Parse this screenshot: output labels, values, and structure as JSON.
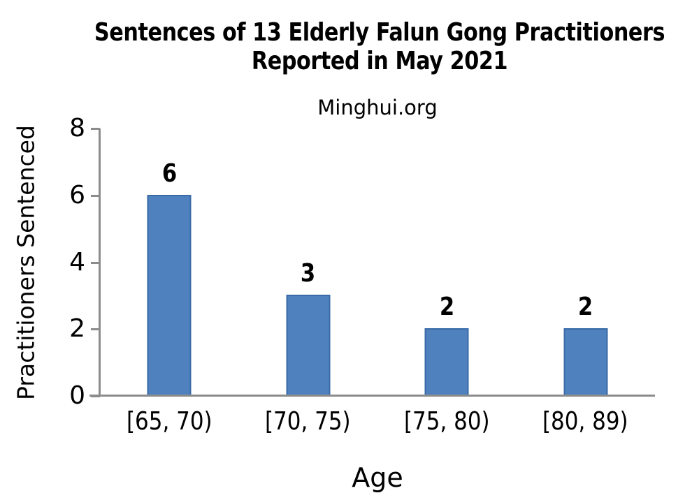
{
  "chart_data": {
    "type": "bar",
    "title": "Sentences of 13 Elderly Falun Gong Practitioners Reported in May 2021",
    "subtitle": "Minghui.org",
    "xlabel": "Age",
    "ylabel": "Practitioners Sentenced",
    "categories": [
      "[65, 70)",
      "[70, 75)",
      "[75, 80)",
      "[80, 89)"
    ],
    "values": [
      6,
      3,
      2,
      2
    ],
    "ylim": [
      0,
      8
    ],
    "yticks": [
      0,
      2,
      4,
      6,
      8
    ],
    "grid": false,
    "legend": "none",
    "data_labels_shown": true,
    "colors": {
      "bar_fill": "#4E81BD",
      "bar_border": "#3A6BA8",
      "axis": "#8C8C8C",
      "text": "#000000"
    }
  }
}
